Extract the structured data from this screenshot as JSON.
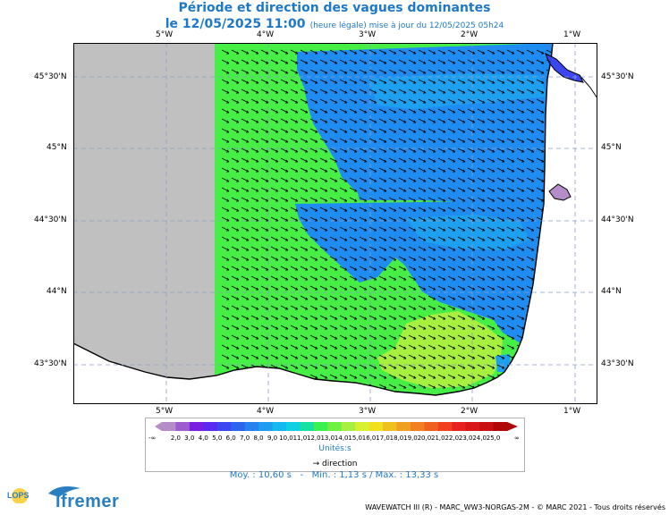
{
  "header": {
    "title": "Période et direction des vagues dominantes",
    "date": "le 12/05/2025 11:00",
    "update_note": "(heure légale) mise à jour du 12/05/2025 05h24"
  },
  "axes": {
    "lon_top": [
      "5°W",
      "4°W",
      "3°W",
      "2°W",
      "1°W"
    ],
    "lon_bottom": [
      "5°W",
      "4°W",
      "3°W",
      "2°W",
      "1°W"
    ],
    "lat_left": [
      "45°30'N",
      "45°N",
      "44°30'N",
      "44°N",
      "43°30'N"
    ],
    "lat_right": [
      "45°30'N",
      "45°N",
      "44°30'N",
      "44°N",
      "43°30'N"
    ]
  },
  "legend": {
    "ticks": [
      "2,0",
      "3,0",
      "4,0",
      "5,0",
      "6,0",
      "7,0",
      "8,0",
      "9,0",
      "10,0",
      "11,0",
      "12,0",
      "13,0",
      "14,0",
      "15,0",
      "16,0",
      "17,0",
      "18,0",
      "19,0",
      "20,0",
      "21,0",
      "22,0",
      "23,0",
      "24,0",
      "25,0"
    ],
    "left_symbol": "-∞",
    "right_symbol": "∞",
    "colors": [
      "#b48cc8",
      "#9c5cd0",
      "#7a1ee0",
      "#5a2af0",
      "#3c46f0",
      "#2c64ee",
      "#2682ee",
      "#1e9cf0",
      "#16b8f0",
      "#0ed0e0",
      "#14e2a0",
      "#3cf050",
      "#70f040",
      "#a8f040",
      "#d8f030",
      "#f0e020",
      "#f0c020",
      "#f0a020",
      "#f08020",
      "#f06020",
      "#f04020",
      "#e82020",
      "#d81818",
      "#c81010",
      "#b00808"
    ],
    "unit_label": "Unités:s",
    "direction_label": "direction"
  },
  "stats": {
    "moy": "Moy. : 10,60 s",
    "min": "Min. : 1,13 s",
    "max": "Max. : 13,33 s"
  },
  "footer": {
    "credit": "WAVEWATCH III (R) - MARC_WW3-NORGAS-2M - © MARC 2021 - Tous droits réservés"
  },
  "logos": {
    "lops": "LOPS",
    "ifremer": "Ifremer"
  },
  "map_colors": {
    "land": "#ffffff",
    "no_data": "#c0c0c0",
    "green": "#46ee46",
    "blue": "#1e8cf0",
    "light_blue": "#1ea0f0",
    "yellow_green": "#a8f040"
  }
}
